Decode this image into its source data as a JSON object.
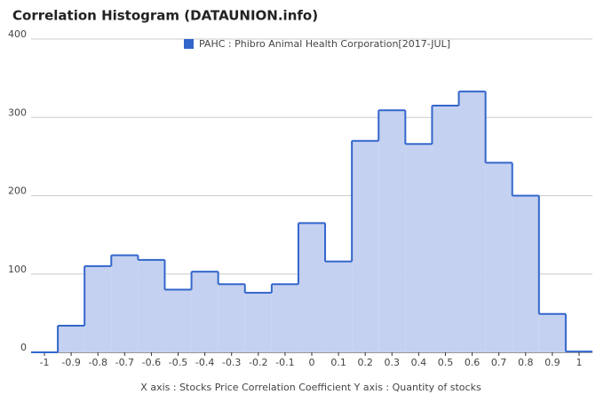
{
  "chart_data": {
    "type": "histogram",
    "title": "Correlation Histogram (DATAUNION.info)",
    "x_label": "X axis : Stocks Price Correlation Coefficient  Y axis : Quantity of stocks",
    "bins": [
      -1.05,
      -0.95,
      -0.85,
      -0.75,
      -0.65,
      -0.55,
      -0.45,
      -0.35,
      -0.25,
      -0.15,
      -0.05,
      0.05,
      0.15,
      0.25,
      0.35,
      0.45,
      0.55,
      0.65,
      0.75,
      0.85,
      0.95,
      1.05
    ],
    "series": [
      {
        "name": "PAHC : Phibro Animal Health Corporation[2017-JUL]",
        "color": "#3366cc",
        "fill": "#c5d1f0",
        "values": [
          0,
          34,
          110,
          124,
          118,
          80,
          103,
          87,
          76,
          87,
          165,
          116,
          270,
          309,
          266,
          315,
          333,
          242,
          200,
          49,
          1
        ]
      }
    ],
    "xlim": [
      -1.05,
      1.05
    ],
    "xticks": [
      -1,
      -0.9,
      -0.8,
      -0.7,
      -0.6,
      -0.5,
      -0.4,
      -0.3,
      -0.2,
      -0.1,
      0,
      0.1,
      0.2,
      0.3,
      0.4,
      0.5,
      0.6,
      0.7,
      0.8,
      0.9,
      1
    ],
    "ylim": [
      0,
      400
    ],
    "yticks": [
      0,
      100,
      200,
      300,
      400
    ],
    "grid": true
  }
}
